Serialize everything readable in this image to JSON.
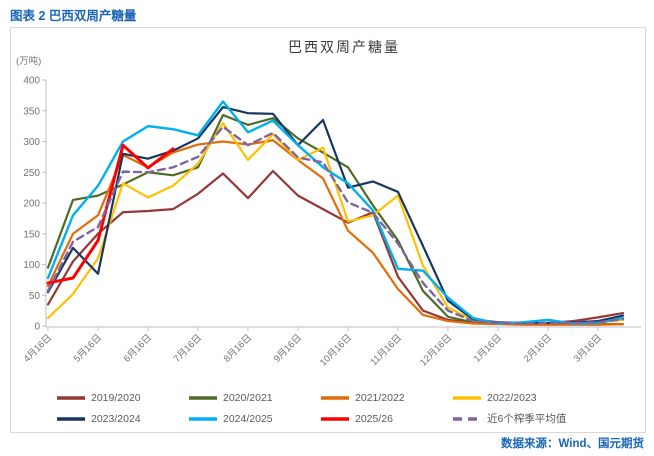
{
  "header": {
    "title": "图表 2  巴西双周产糖量"
  },
  "source": {
    "text": "数据来源：Wind、国元期货"
  },
  "chart_data": {
    "type": "line",
    "title": "巴西双周产糖量",
    "y_axis_label": "(万吨)",
    "ylim": [
      0,
      400
    ],
    "y_ticks": [
      0,
      50,
      100,
      150,
      200,
      250,
      300,
      350,
      400
    ],
    "x_tick_labels": [
      "4月16日",
      "5月16日",
      "6月16日",
      "7月16日",
      "8月16日",
      "9月16日",
      "10月16日",
      "11月16日",
      "12月16日",
      "1月16日",
      "2月16日",
      "3月16日"
    ],
    "points_per_month": 2,
    "x_points": 24,
    "grid": false,
    "legend_position": "bottom",
    "series": [
      {
        "name": "2019/2020",
        "color": "#953735",
        "dashed": false,
        "width": 2.2,
        "values": [
          35,
          105,
          150,
          185,
          187,
          190,
          215,
          248,
          208,
          252,
          212,
          190,
          168,
          185,
          80,
          25,
          10,
          5,
          4,
          4,
          5,
          8,
          14,
          21
        ]
      },
      {
        "name": "2020/2021",
        "color": "#4F6B28",
        "dashed": false,
        "width": 2.2,
        "values": [
          95,
          205,
          212,
          230,
          250,
          245,
          258,
          343,
          327,
          338,
          305,
          282,
          258,
          196,
          139,
          57,
          15,
          6,
          4,
          3,
          3,
          3,
          3,
          3
        ]
      },
      {
        "name": "2021/2022",
        "color": "#E36C09",
        "dashed": false,
        "width": 2.2,
        "values": [
          65,
          150,
          180,
          278,
          258,
          282,
          295,
          300,
          295,
          302,
          270,
          240,
          155,
          119,
          60,
          18,
          8,
          4,
          3,
          2,
          2,
          2,
          2,
          3
        ]
      },
      {
        "name": "2022/2023",
        "color": "#FFC000",
        "dashed": false,
        "width": 2.2,
        "values": [
          13,
          52,
          110,
          232,
          209,
          228,
          264,
          330,
          270,
          312,
          270,
          290,
          170,
          180,
          212,
          98,
          30,
          10,
          6,
          5,
          5,
          5,
          6,
          10
        ]
      },
      {
        "name": "2023/2024",
        "color": "#17375E",
        "dashed": false,
        "width": 2.2,
        "values": [
          55,
          127,
          85,
          280,
          272,
          285,
          305,
          356,
          346,
          345,
          294,
          335,
          225,
          235,
          218,
          130,
          41,
          11,
          6,
          5,
          5,
          6,
          8,
          17
        ]
      },
      {
        "name": "2024/2025",
        "color": "#00B0F0",
        "dashed": false,
        "width": 2.4,
        "values": [
          78,
          180,
          228,
          300,
          325,
          320,
          310,
          365,
          315,
          334,
          294,
          258,
          232,
          188,
          93,
          90,
          46,
          13,
          4,
          6,
          10,
          4,
          5,
          13
        ]
      },
      {
        "name": "2025/26",
        "color": "#FF0000",
        "dashed": false,
        "width": 3,
        "values": [
          70,
          78,
          139,
          294,
          257,
          288,
          null,
          null,
          null,
          null,
          null,
          null,
          null,
          null,
          null,
          null,
          null,
          null,
          null,
          null,
          null,
          null,
          null,
          null
        ]
      },
      {
        "name": "近6个榨季平均值",
        "color": "#8064A2",
        "dashed": true,
        "width": 2.4,
        "values": [
          57,
          137,
          161,
          251,
          250,
          258,
          275,
          324,
          294,
          314,
          274,
          266,
          201,
          184,
          134,
          70,
          25,
          8,
          5,
          4,
          5,
          5,
          6,
          11
        ]
      }
    ]
  }
}
